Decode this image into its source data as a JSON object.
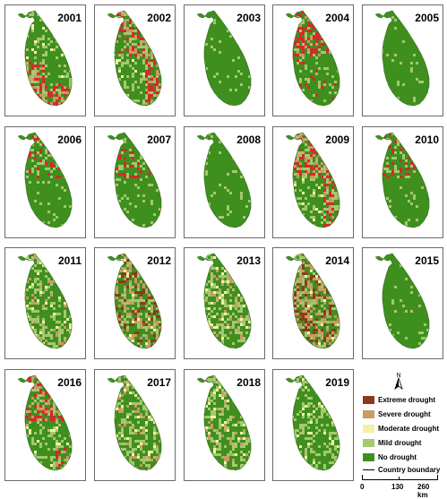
{
  "panels": [
    {
      "year": "2001",
      "dominant": "severe-west-south"
    },
    {
      "year": "2002",
      "dominant": "severe-north-east"
    },
    {
      "year": "2003",
      "dominant": "none"
    },
    {
      "year": "2004",
      "dominant": "severe-north"
    },
    {
      "year": "2005",
      "dominant": "none"
    },
    {
      "year": "2006",
      "dominant": "mild-north"
    },
    {
      "year": "2007",
      "dominant": "mild-north"
    },
    {
      "year": "2008",
      "dominant": "none"
    },
    {
      "year": "2009",
      "dominant": "severe-north-east"
    },
    {
      "year": "2010",
      "dominant": "mild-north"
    },
    {
      "year": "2011",
      "dominant": "moderate"
    },
    {
      "year": "2012",
      "dominant": "extreme-widespread"
    },
    {
      "year": "2013",
      "dominant": "moderate"
    },
    {
      "year": "2014",
      "dominant": "extreme-widespread"
    },
    {
      "year": "2015",
      "dominant": "none"
    },
    {
      "year": "2016",
      "dominant": "severe-north-south"
    },
    {
      "year": "2017",
      "dominant": "moderate"
    },
    {
      "year": "2018",
      "dominant": "moderate"
    },
    {
      "year": "2019",
      "dominant": "mild"
    }
  ],
  "legend": {
    "items": [
      {
        "label": "Extreme drought",
        "color": "#8b3a1e"
      },
      {
        "label": "Severe drought",
        "color": "#c79b63"
      },
      {
        "label": "Moderate drought",
        "color": "#f3f0a8"
      },
      {
        "label": "Mild drought",
        "color": "#a5c86e"
      },
      {
        "label": "No drought",
        "color": "#3f8f1f"
      }
    ],
    "boundary_label": "Country boundary",
    "north_label": "N",
    "scale": {
      "t0": "0",
      "t1": "130",
      "t2": "260 km"
    }
  },
  "colors": {
    "no_drought": "#3f8f1f",
    "mild": "#a5c86e",
    "moderate": "#f3f0a8",
    "severe": "#c79b63",
    "extreme": "#8b3a1e",
    "red_hotspot": "#d42a2a",
    "outline": "#2e6a17"
  },
  "icons": {
    "north_arrow": "north-arrow-icon"
  }
}
